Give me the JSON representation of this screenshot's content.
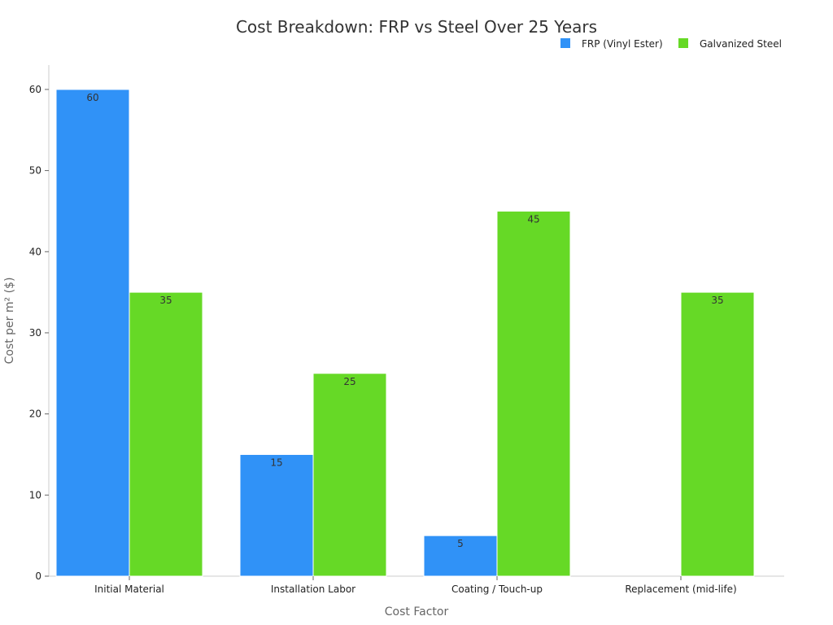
{
  "chart_data": {
    "type": "bar",
    "title": "Cost Breakdown: FRP vs Steel Over 25 Years",
    "xlabel": "Cost Factor",
    "ylabel": "Cost per m² ($)",
    "categories": [
      "Initial Material",
      "Installation Labor",
      "Coating / Touch-up",
      "Replacement (mid-life)"
    ],
    "series": [
      {
        "name": "FRP (Vinyl Ester)",
        "color": "#3092f7",
        "values": [
          60,
          15,
          5,
          0
        ]
      },
      {
        "name": "Galvanized Steel",
        "color": "#66d926",
        "values": [
          35,
          25,
          45,
          35
        ]
      }
    ],
    "ylim": [
      0,
      63
    ],
    "yticks": [
      0,
      10,
      20,
      30,
      40,
      50,
      60
    ],
    "grid": false,
    "legend_position": "top-right"
  }
}
